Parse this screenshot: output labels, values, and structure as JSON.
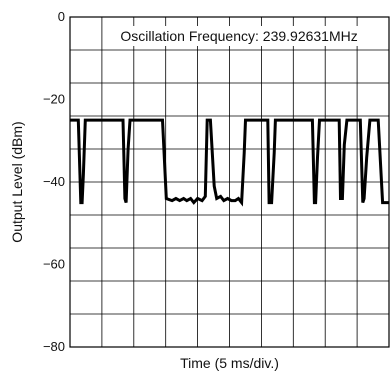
{
  "chart_data": {
    "type": "line",
    "title": "Oscillation Frequency: 239.92631MHz",
    "xlabel": "Time (5 ms/div.)",
    "ylabel": "Output Level (dBm)",
    "ylim": [
      -80,
      0
    ],
    "yticks": [
      0,
      -20,
      -40,
      -60,
      -80
    ],
    "xlim": [
      0,
      50
    ],
    "x_unit": "ms",
    "grid": true,
    "series": [
      {
        "color": "#000000",
        "x": [
          0,
          1.3,
          1.7,
          1.9,
          2.1,
          2.4,
          8.3,
          8.6,
          8.8,
          9.1,
          9.4,
          14.5,
          15.1,
          16.0,
          16.6,
          17.2,
          17.8,
          18.3,
          18.9,
          19.4,
          20.0,
          20.7,
          21.2,
          21.5,
          22.0,
          22.6,
          23.0,
          23.6,
          24.1,
          24.7,
          25.3,
          25.9,
          26.4,
          26.9,
          27.3,
          27.5,
          27.9,
          31.0,
          31.2,
          31.6,
          32.0,
          32.2,
          38.0,
          38.3,
          38.5,
          38.8,
          39.1,
          42.2,
          42.4,
          42.7,
          43.0,
          43.4,
          45.5,
          45.9,
          46.1,
          46.5,
          47.0,
          48.3,
          49.0,
          49.5,
          50.0
        ],
        "y": [
          -25,
          -25,
          -45,
          -45,
          -38,
          -25,
          -25,
          -44,
          -45,
          -32,
          -25,
          -25,
          -44,
          -44.5,
          -44,
          -44.5,
          -44,
          -44.5,
          -44,
          -45,
          -44,
          -44.5,
          -43.5,
          -25,
          -25,
          -41,
          -44,
          -43.5,
          -44.5,
          -44,
          -44.5,
          -44.5,
          -44,
          -45,
          -33,
          -25,
          -25,
          -25,
          -45,
          -45,
          -33,
          -25,
          -25,
          -45,
          -45,
          -34,
          -25,
          -25,
          -44,
          -44,
          -31,
          -25,
          -25,
          -45,
          -44,
          -34,
          -25,
          -25,
          -45,
          -45,
          -45
        ]
      }
    ]
  }
}
